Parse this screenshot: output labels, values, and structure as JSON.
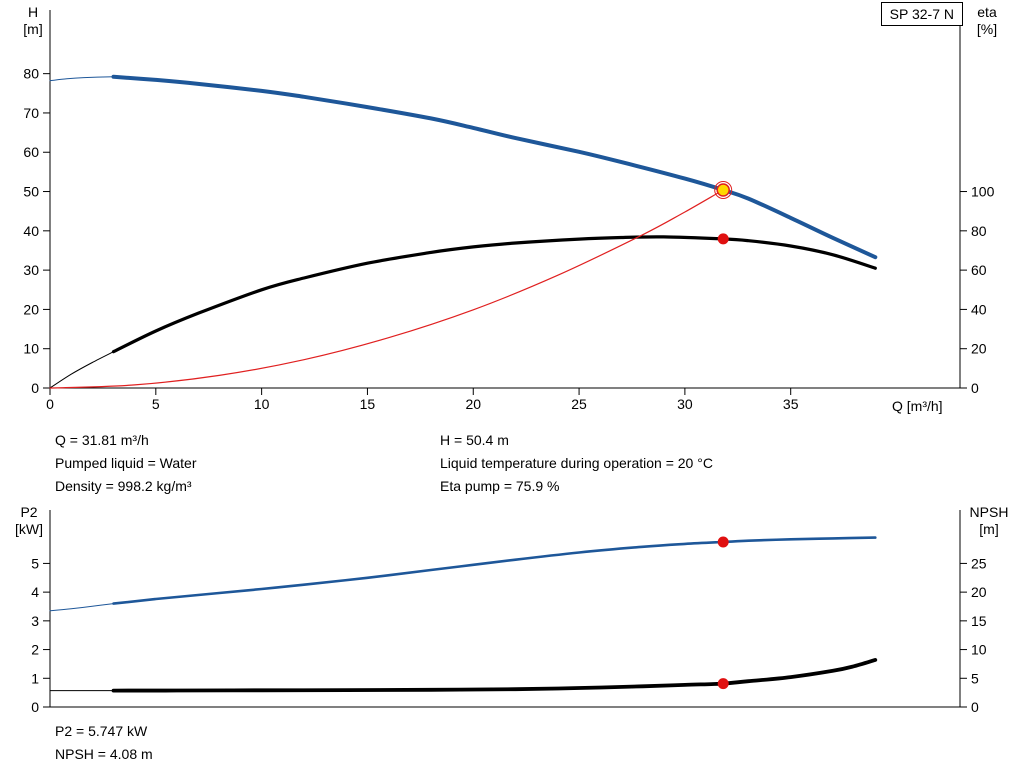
{
  "pump_type": "SP 32-7 N",
  "operating_point_info": {
    "col_left": [
      "Q = 31.81 m³/h",
      "Pumped liquid = Water",
      "Density = 998.2 kg/m³"
    ],
    "col_right": [
      "H = 50.4 m",
      "Liquid temperature during operation = 20 °C",
      "Eta pump = 75.9 %"
    ]
  },
  "power_info": [
    "P2 = 5.747 kW",
    "NPSH = 4.08 m"
  ],
  "chart_data": [
    {
      "name": "qh-eta-chart",
      "type": "line",
      "x": {
        "label": "Q [m³/h]",
        "min": 0,
        "max": 43,
        "ticks": [
          0,
          5,
          10,
          15,
          20,
          25,
          30,
          35
        ]
      },
      "y_left": {
        "label": "H\n[m]",
        "min": 0,
        "max": 96.2,
        "ticks": [
          0,
          10,
          20,
          30,
          40,
          50,
          60,
          70,
          80
        ]
      },
      "y_right": {
        "label": "eta\n[%]",
        "min": 0,
        "max": 192.4,
        "ticks": [
          0,
          20,
          40,
          60,
          80,
          100
        ]
      },
      "series": [
        {
          "name": "head-curve-lead",
          "axis": "left",
          "color": "#1e5799",
          "width": 1,
          "points": [
            [
              0,
              78.2
            ],
            [
              0.8,
              78.7
            ],
            [
              1.6,
              79.0
            ],
            [
              3,
              79.2
            ]
          ]
        },
        {
          "name": "head-curve",
          "axis": "left",
          "color": "#1e5799",
          "width": 4,
          "points": [
            [
              3,
              79.2
            ],
            [
              5,
              78.4
            ],
            [
              7,
              77.4
            ],
            [
              10,
              75.6
            ],
            [
              12,
              74.1
            ],
            [
              15,
              71.5
            ],
            [
              18,
              68.6
            ],
            [
              20,
              66.2
            ],
            [
              22,
              63.6
            ],
            [
              25,
              60.1
            ],
            [
              27,
              57.5
            ],
            [
              30,
              53.3
            ],
            [
              31.81,
              50.4
            ],
            [
              33,
              48.2
            ],
            [
              35,
              43.3
            ],
            [
              37,
              38.2
            ],
            [
              39,
              33.3
            ]
          ]
        },
        {
          "name": "efficiency-curve-lead",
          "axis": "right",
          "color": "#000000",
          "width": 1,
          "points": [
            [
              0,
              0
            ],
            [
              1,
              7
            ],
            [
              2,
              13
            ],
            [
              3,
              18.5
            ]
          ]
        },
        {
          "name": "efficiency-curve",
          "axis": "right",
          "color": "#000000",
          "width": 3.2,
          "points": [
            [
              3,
              18.5
            ],
            [
              5,
              29
            ],
            [
              7,
              38
            ],
            [
              10,
              50
            ],
            [
              12,
              56
            ],
            [
              15,
              63.5
            ],
            [
              18,
              69
            ],
            [
              20,
              71.8
            ],
            [
              22,
              73.8
            ],
            [
              25,
              75.8
            ],
            [
              27,
              76.6
            ],
            [
              29,
              76.9
            ],
            [
              31.81,
              75.9
            ],
            [
              33,
              75
            ],
            [
              35,
              72.3
            ],
            [
              37,
              67.8
            ],
            [
              39,
              61
            ]
          ]
        },
        {
          "name": "system-curve",
          "axis": "left",
          "color": "#e02020",
          "width": 1.2,
          "points": [
            [
              0,
              0
            ],
            [
              4,
              0.8
            ],
            [
              8,
              3.2
            ],
            [
              12,
              7.2
            ],
            [
              16,
              12.8
            ],
            [
              20,
              19.9
            ],
            [
              24,
              28.7
            ],
            [
              28,
              39.0
            ],
            [
              30,
              44.8
            ],
            [
              31.81,
              50.4
            ]
          ]
        }
      ],
      "markers": [
        {
          "name": "duty-point-ring",
          "x": 31.81,
          "y": 50.4,
          "axis": "left",
          "r": 8.5,
          "fill": "none",
          "stroke": "#e02020",
          "stroke_width": 1
        },
        {
          "name": "duty-point",
          "x": 31.81,
          "y": 50.4,
          "axis": "left",
          "r": 6,
          "fill": "#ffd800",
          "stroke": "#e02020",
          "stroke_width": 1.5
        },
        {
          "name": "eta-point",
          "x": 31.81,
          "y": 75.9,
          "axis": "right",
          "r": 5.5,
          "fill": "#e01010"
        }
      ]
    },
    {
      "name": "p2-npsh-chart",
      "type": "line",
      "x": {
        "label": "",
        "min": 0,
        "max": 43,
        "ticks": []
      },
      "y_left": {
        "label": "P2\n[kW]",
        "min": 0,
        "max": 6.86,
        "ticks": [
          0,
          1,
          2,
          3,
          4,
          5
        ]
      },
      "y_right": {
        "label": "NPSH\n[m]",
        "min": 0,
        "max": 34.3,
        "ticks": [
          0,
          5,
          10,
          15,
          20,
          25
        ]
      },
      "series": [
        {
          "name": "power-curve-lead",
          "axis": "left",
          "color": "#1e5799",
          "width": 1,
          "points": [
            [
              0,
              3.35
            ],
            [
              1,
              3.42
            ],
            [
              2,
              3.51
            ],
            [
              3,
              3.6
            ]
          ]
        },
        {
          "name": "power-curve",
          "axis": "left",
          "color": "#1e5799",
          "width": 2.6,
          "points": [
            [
              3,
              3.6
            ],
            [
              5,
              3.76
            ],
            [
              8,
              3.97
            ],
            [
              10,
              4.11
            ],
            [
              12,
              4.26
            ],
            [
              15,
              4.5
            ],
            [
              18,
              4.77
            ],
            [
              20,
              4.95
            ],
            [
              22,
              5.13
            ],
            [
              25,
              5.38
            ],
            [
              28,
              5.58
            ],
            [
              30,
              5.68
            ],
            [
              31.81,
              5.747
            ],
            [
              33,
              5.79
            ],
            [
              35,
              5.84
            ],
            [
              37,
              5.87
            ],
            [
              39,
              5.9
            ]
          ]
        },
        {
          "name": "npsh-curve-lead",
          "axis": "right",
          "color": "#000000",
          "width": 1,
          "points": [
            [
              0,
              2.85
            ],
            [
              1.5,
              2.85
            ],
            [
              3,
              2.85
            ]
          ]
        },
        {
          "name": "npsh-curve",
          "axis": "right",
          "color": "#000000",
          "width": 3.8,
          "points": [
            [
              3,
              2.85
            ],
            [
              6,
              2.87
            ],
            [
              10,
              2.9
            ],
            [
              14,
              2.95
            ],
            [
              18,
              3.0
            ],
            [
              22,
              3.1
            ],
            [
              25,
              3.3
            ],
            [
              28,
              3.6
            ],
            [
              30,
              3.85
            ],
            [
              31.81,
              4.08
            ],
            [
              33,
              4.5
            ],
            [
              35,
              5.2
            ],
            [
              37,
              6.3
            ],
            [
              38,
              7.1
            ],
            [
              39,
              8.2
            ]
          ]
        }
      ],
      "markers": [
        {
          "name": "p2-point",
          "x": 31.81,
          "y": 5.747,
          "axis": "left",
          "r": 5.5,
          "fill": "#e01010"
        },
        {
          "name": "npsh-point",
          "x": 31.81,
          "y": 4.08,
          "axis": "right",
          "r": 5.5,
          "fill": "#e01010"
        }
      ]
    }
  ]
}
